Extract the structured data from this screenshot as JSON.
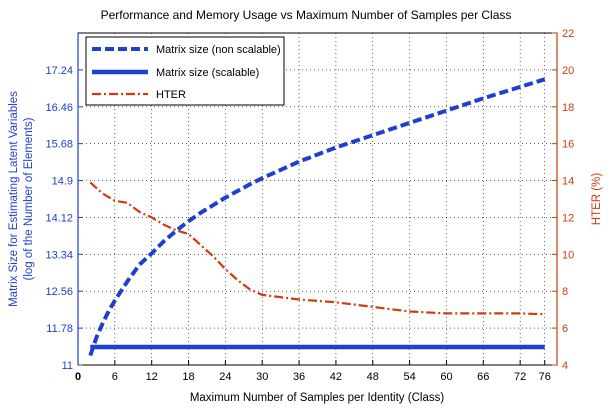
{
  "chart_data": {
    "type": "line",
    "title": "Performance and Memory Usage vs Maximum Number of Samples per Class",
    "xlabel": "Maximum Number of Samples per Identity (Class)",
    "ylabel_left": [
      "Matrix Size for Estimating Latent Variables",
      "(log of the Number of Elements)"
    ],
    "ylabel_right": "HTER (%)",
    "xlim": [
      0,
      78
    ],
    "ylim_left": [
      11,
      18.02
    ],
    "ylim_right": [
      4,
      22
    ],
    "x_ticks": [
      0,
      6,
      12,
      18,
      24,
      30,
      36,
      42,
      48,
      54,
      60,
      66,
      72,
      76
    ],
    "y_left_ticks": [
      "11",
      "11.78",
      "12.56",
      "13.34",
      "14.12",
      "14.9",
      "15.68",
      "16.46",
      "17.24"
    ],
    "y_right_ticks": [
      "4",
      "6",
      "8",
      "10",
      "12",
      "14",
      "16",
      "18",
      "20",
      "22"
    ],
    "grid": true,
    "legend_position": "top-left",
    "left_axis_color": "#1f3fd0",
    "right_axis_color": "#d03a10",
    "series": [
      {
        "name": "Matrix size (non scalable)",
        "axis": "left",
        "color": "#1f3fd0",
        "style": "dashed",
        "x": [
          2,
          3,
          4,
          5,
          6,
          8,
          10,
          12,
          14,
          16,
          18,
          20,
          24,
          28,
          30,
          36,
          42,
          48,
          54,
          60,
          66,
          72,
          76
        ],
        "y": [
          11.2,
          11.58,
          11.88,
          12.14,
          12.36,
          12.76,
          13.12,
          13.36,
          13.62,
          13.84,
          14.04,
          14.22,
          14.54,
          14.82,
          14.95,
          15.3,
          15.6,
          15.86,
          16.12,
          16.38,
          16.64,
          16.88,
          17.04
        ]
      },
      {
        "name": "Matrix size (scalable)",
        "axis": "left",
        "color": "#1f3fd0",
        "style": "solid",
        "x": [
          2,
          76
        ],
        "y": [
          11.38,
          11.38
        ]
      },
      {
        "name": "HTER",
        "axis": "right",
        "color": "#d03a10",
        "style": "dashdot",
        "x": [
          2,
          4,
          6,
          8,
          10,
          12,
          14,
          16,
          18,
          20,
          22,
          24,
          26,
          28,
          30,
          36,
          42,
          48,
          54,
          60,
          66,
          72,
          76
        ],
        "y": [
          13.9,
          13.3,
          12.9,
          12.8,
          12.3,
          12.0,
          11.6,
          11.3,
          11.1,
          10.5,
          9.9,
          9.2,
          8.6,
          8.1,
          7.8,
          7.55,
          7.4,
          7.15,
          6.9,
          6.8,
          6.8,
          6.8,
          6.75
        ]
      }
    ]
  }
}
